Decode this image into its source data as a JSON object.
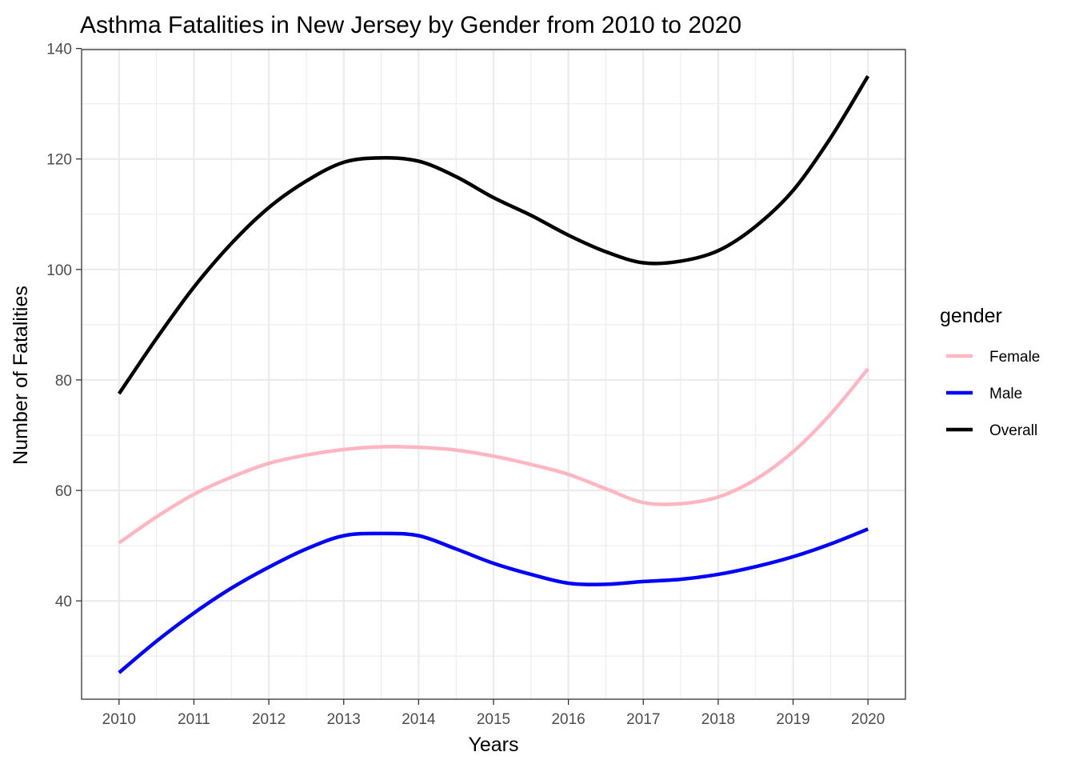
{
  "chart_data": {
    "type": "line",
    "title": "Asthma Fatalities in New Jersey by Gender from 2010 to 2020",
    "xlabel": "Years",
    "ylabel": "Number of Fatalities",
    "x": [
      2010,
      2011,
      2012,
      2013,
      2014,
      2015,
      2016,
      2017,
      2018,
      2019,
      2020
    ],
    "x_tick_labels": [
      "2010",
      "2011",
      "2012",
      "2013",
      "2014",
      "2015",
      "2016",
      "2017",
      "2018",
      "2019",
      "2020"
    ],
    "y_ticks": [
      40,
      60,
      80,
      100,
      120,
      140
    ],
    "y_tick_labels": [
      "40",
      "60",
      "80",
      "100",
      "120",
      "140"
    ],
    "xlim": [
      2009.5,
      2020.5
    ],
    "ylim": [
      22.2,
      139.8
    ],
    "grid": true,
    "legend": {
      "title": "gender",
      "placement": "right",
      "entries": [
        "Female",
        "Male",
        "Overall"
      ]
    },
    "series": [
      {
        "name": "Female",
        "color": "#ffb6c1",
        "points": [
          [
            2010,
            50.5
          ],
          [
            2010.5,
            55.2
          ],
          [
            2011,
            59.3
          ],
          [
            2011.5,
            62.4
          ],
          [
            2012,
            64.9
          ],
          [
            2012.5,
            66.4
          ],
          [
            2013,
            67.4
          ],
          [
            2013.5,
            67.9
          ],
          [
            2014,
            67.8
          ],
          [
            2014.5,
            67.3
          ],
          [
            2015,
            66.2
          ],
          [
            2015.5,
            64.7
          ],
          [
            2016,
            62.9
          ],
          [
            2016.5,
            60.3
          ],
          [
            2017,
            57.8
          ],
          [
            2017.5,
            57.6
          ],
          [
            2018,
            58.8
          ],
          [
            2018.5,
            62.0
          ],
          [
            2019,
            67.0
          ],
          [
            2019.5,
            73.8
          ],
          [
            2020,
            82.0
          ]
        ]
      },
      {
        "name": "Male",
        "color": "#0000ff",
        "points": [
          [
            2010,
            27.0
          ],
          [
            2010.5,
            32.7
          ],
          [
            2011,
            37.8
          ],
          [
            2011.5,
            42.3
          ],
          [
            2012,
            46.1
          ],
          [
            2012.5,
            49.4
          ],
          [
            2013,
            51.8
          ],
          [
            2013.5,
            52.2
          ],
          [
            2014,
            51.8
          ],
          [
            2014.5,
            49.4
          ],
          [
            2015,
            46.8
          ],
          [
            2015.5,
            44.8
          ],
          [
            2016,
            43.2
          ],
          [
            2016.5,
            43.0
          ],
          [
            2017,
            43.5
          ],
          [
            2017.5,
            43.9
          ],
          [
            2018,
            44.8
          ],
          [
            2018.5,
            46.2
          ],
          [
            2019,
            48.0
          ],
          [
            2019.5,
            50.3
          ],
          [
            2020,
            53.0
          ]
        ]
      },
      {
        "name": "Overall",
        "color": "#000000",
        "points": [
          [
            2010,
            77.5
          ],
          [
            2010.5,
            87.5
          ],
          [
            2011,
            96.8
          ],
          [
            2011.5,
            104.7
          ],
          [
            2012,
            111.2
          ],
          [
            2012.5,
            116.0
          ],
          [
            2013,
            119.4
          ],
          [
            2013.5,
            120.2
          ],
          [
            2014,
            119.6
          ],
          [
            2014.5,
            116.8
          ],
          [
            2015,
            113.0
          ],
          [
            2015.5,
            109.8
          ],
          [
            2016,
            106.2
          ],
          [
            2016.5,
            103.2
          ],
          [
            2017,
            101.2
          ],
          [
            2017.5,
            101.5
          ],
          [
            2018,
            103.4
          ],
          [
            2018.5,
            107.8
          ],
          [
            2019,
            114.3
          ],
          [
            2019.5,
            123.8
          ],
          [
            2020,
            135.0
          ]
        ]
      }
    ]
  }
}
